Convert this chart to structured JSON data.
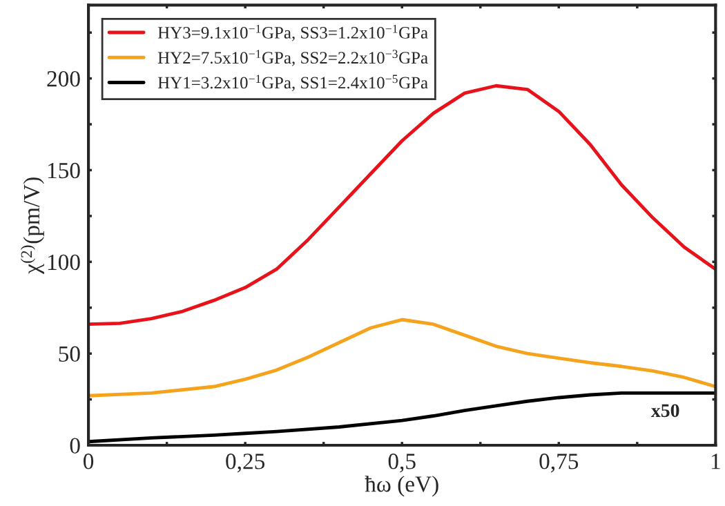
{
  "chart_data": {
    "type": "line",
    "xlabel": "ħω (eV)",
    "ylabel": "χ$^{(2)}$(pm/V)",
    "xlim": [
      0,
      1
    ],
    "ylim": [
      0,
      240
    ],
    "xticks": [
      0,
      {
        "value": 0.125,
        "label": null
      },
      {
        "value": 0.25,
        "label": "0,25"
      },
      {
        "value": 0.375,
        "label": null
      },
      {
        "value": 0.5,
        "label": "0,5"
      },
      {
        "value": 0.625,
        "label": null
      },
      {
        "value": 0.75,
        "label": "0,75"
      },
      {
        "value": 0.875,
        "label": null
      },
      1
    ],
    "yticks": [
      0,
      {
        "value": 25,
        "label": null
      },
      50,
      {
        "value": 75,
        "label": null
      },
      100,
      {
        "value": 125,
        "label": null
      },
      150,
      {
        "value": 175,
        "label": null
      },
      200,
      {
        "value": 225,
        "label": null
      }
    ],
    "grid": false,
    "legend": "top left",
    "marker": "none",
    "line_style": "solid",
    "series": [
      {
        "name": "HY3=9.1x10$^{−1}$GPa, SS3=1.2x10$^{−1}$GPa",
        "color": "#e8121a",
        "x": [
          0,
          0.05,
          0.1,
          0.15,
          0.2,
          0.25,
          0.3,
          0.35,
          0.4,
          0.45,
          0.5,
          0.55,
          0.6,
          0.65,
          0.7,
          0.75,
          0.8,
          0.85,
          0.9,
          0.95,
          1.0
        ],
        "values": [
          66,
          66.5,
          69,
          73,
          79,
          86,
          96,
          112,
          130,
          148,
          166,
          181,
          192,
          196,
          194,
          182,
          164,
          142,
          124,
          108,
          96
        ]
      },
      {
        "name": "HY2=7.5x10$^{−1}$GPa, SS2=2.2x10$^{−3}$GPa",
        "color": "#f5a31c",
        "x": [
          0,
          0.1,
          0.2,
          0.25,
          0.3,
          0.35,
          0.4,
          0.45,
          0.5,
          0.55,
          0.6,
          0.65,
          0.7,
          0.75,
          0.8,
          0.85,
          0.9,
          0.95,
          1.0
        ],
        "values": [
          27,
          28.5,
          32,
          36,
          41,
          48,
          56,
          64,
          68.5,
          66,
          60,
          54,
          50,
          47.5,
          45,
          43,
          40.5,
          37,
          32
        ]
      },
      {
        "name": "HY1=3.2x10$^{−1}$GPa, SS1=2.4x10$^{−5}$GPa",
        "color": "#000000",
        "x": [
          0,
          0.1,
          0.2,
          0.25,
          0.3,
          0.4,
          0.5,
          0.55,
          0.6,
          0.65,
          0.7,
          0.75,
          0.8,
          0.85,
          0.9,
          1.0
        ],
        "values": [
          2,
          4,
          5.5,
          6.5,
          7.5,
          10,
          13.5,
          16,
          19,
          21.5,
          24,
          26,
          27.5,
          28.5,
          28.5,
          28.5
        ]
      }
    ],
    "annotations": [
      "x50"
    ]
  }
}
